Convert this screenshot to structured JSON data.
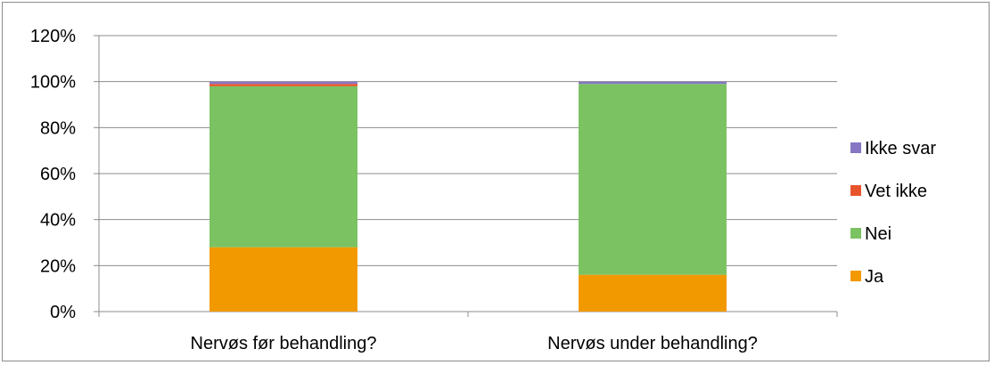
{
  "chart_data": {
    "type": "bar",
    "stacked": true,
    "categories": [
      "Nervøs før behandling?",
      "Nervøs under behandling?"
    ],
    "series": [
      {
        "name": "Ja",
        "color": "#f29900",
        "values": [
          28,
          16
        ]
      },
      {
        "name": "Nei",
        "color": "#7ac262",
        "values": [
          70,
          83
        ]
      },
      {
        "name": "Vet ikke",
        "color": "#e8542b",
        "values": [
          1,
          0
        ]
      },
      {
        "name": "Ikke svar",
        "color": "#8676c4",
        "values": [
          1,
          1
        ]
      }
    ],
    "y_ticks": [
      "0%",
      "20%",
      "40%",
      "60%",
      "80%",
      "100%",
      "120%"
    ],
    "ylim": [
      0,
      120
    ],
    "grid": true,
    "legend_placement": "right",
    "legend_order": [
      "Ikke svar",
      "Vet ikke",
      "Nei",
      "Ja"
    ],
    "axis_color": "#8c8c8c",
    "grid_color": "#8c8c8c"
  }
}
